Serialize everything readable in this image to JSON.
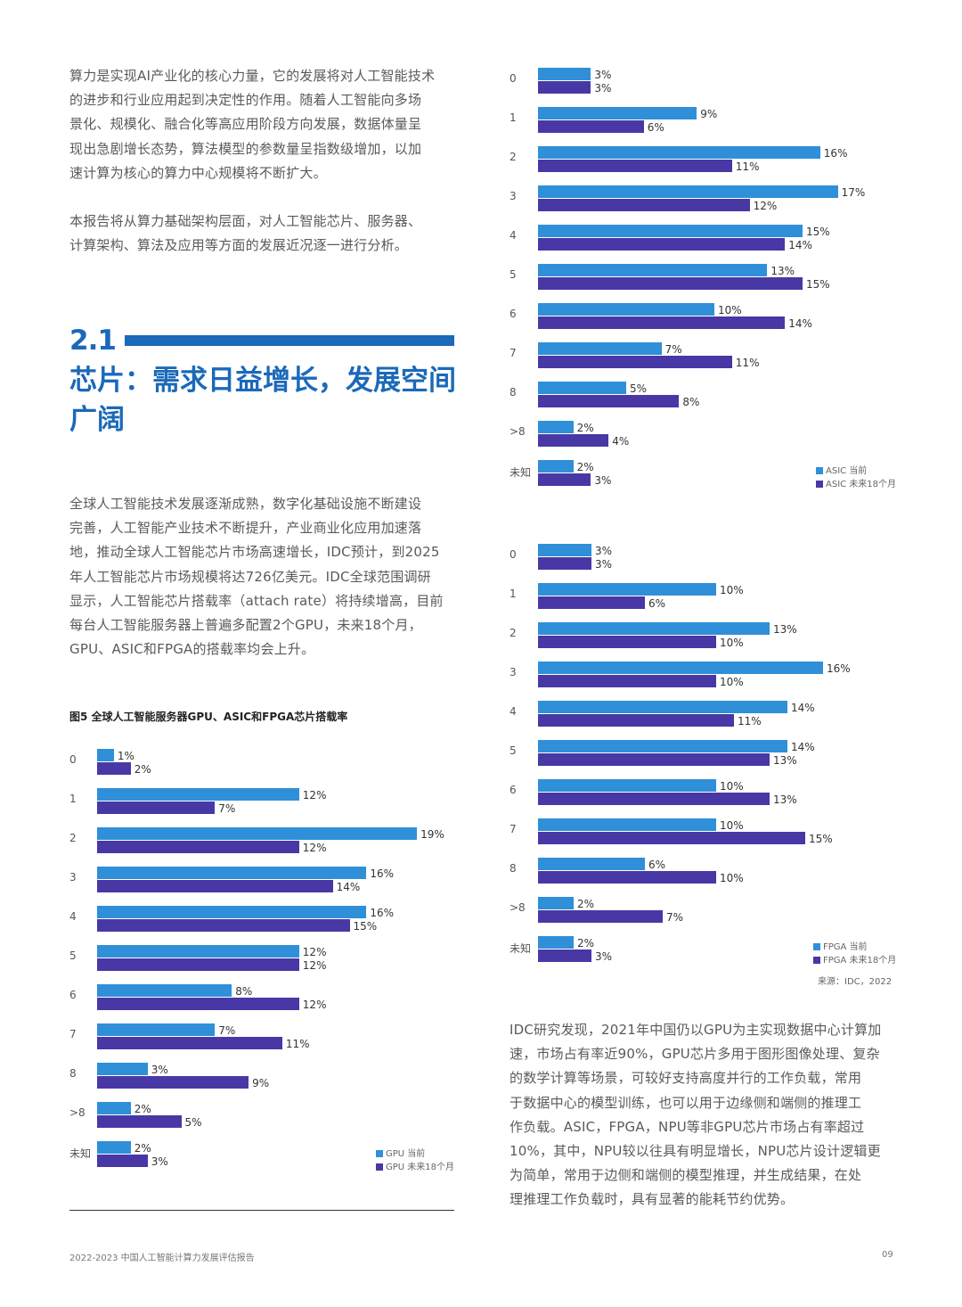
{
  "colors": {
    "accent": "#1b69b9",
    "current": "#2f8fd8",
    "future": "#4838a6"
  },
  "intro": {
    "p1": [
      "算力是实现AI产业化的核心力量，它的发展将对人工智能技术",
      "的进步和行业应用起到决定性的作用。随着人工智能向多场",
      "景化、规模化、融合化等高应用阶段方向发展，数据体量呈",
      "现出急剧增长态势，算法模型的参数量呈指数级增加，以加",
      "速计算为核心的算力中心规模将不断扩大。"
    ],
    "p2": [
      "本报告将从算力基础架构层面，对人工智能芯片、服务器、",
      "计算架构、算法及应用等方面的发展近况逐一进行分析。"
    ]
  },
  "section": {
    "number": "2.1",
    "title_lines": [
      "芯片：需求日益增长，发展空间",
      "广阔"
    ]
  },
  "body": {
    "p3": [
      "全球人工智能技术发展逐渐成熟，数字化基础设施不断建设",
      "完善，人工智能产业技术不断提升，产业商业化应用加速落",
      "地，推动全球人工智能芯片市场高速增长，IDC预计，到2025",
      "年人工智能芯片市场规模将达726亿美元。IDC全球范围调研",
      "显示，人工智能芯片搭载率（attach rate）将持续增高，目前",
      "每台人工智能服务器上普遍多配置2个GPU，未来18个月，",
      "GPU、ASIC和FPGA的搭载率均会上升。"
    ],
    "p4": [
      "IDC研究发现，2021年中国仍以GPU为主实现数据中心计算加",
      "速，市场占有率近90%，GPU芯片多用于图形图像处理、复杂",
      "的数学计算等场景，可较好支持高度并行的工作负载，常用",
      "于数据中心的模型训练，也可以用于边缘侧和端侧的推理工",
      "作负载。ASIC，FPGA，NPU等非GPU芯片市场占有率超过",
      "10%，其中，NPU较以往具有明显增长，NPU芯片设计逻辑更",
      "为简单，常用于边侧和端侧的模型推理，并生成结果，在处",
      "理推理工作负载时，具有显著的能耗节约优势。"
    ]
  },
  "figure_title": "图5 全球人工智能服务器GPU、ASIC和FPGA芯片搭载率",
  "chart_data": [
    {
      "type": "bar",
      "orientation": "horizontal",
      "unit": "%",
      "categories": [
        "0",
        "1",
        "2",
        "3",
        "4",
        "5",
        "6",
        "7",
        "8",
        ">8",
        "未知"
      ],
      "series": [
        {
          "name": "GPU 当前",
          "values": [
            1,
            12,
            19,
            16,
            16,
            12,
            8,
            7,
            3,
            2,
            2
          ]
        },
        {
          "name": "GPU 未来18个月",
          "values": [
            2,
            7,
            12,
            14,
            15,
            12,
            12,
            11,
            9,
            5,
            3
          ]
        }
      ],
      "legend": "bottom-right"
    },
    {
      "type": "bar",
      "orientation": "horizontal",
      "unit": "%",
      "categories": [
        "0",
        "1",
        "2",
        "3",
        "4",
        "5",
        "6",
        "7",
        "8",
        ">8",
        "未知"
      ],
      "series": [
        {
          "name": "ASIC 当前",
          "values": [
            3,
            9,
            16,
            17,
            15,
            13,
            10,
            7,
            5,
            2,
            2
          ]
        },
        {
          "name": "ASIC 未来18个月",
          "values": [
            3,
            6,
            11,
            12,
            14,
            15,
            14,
            11,
            8,
            4,
            3
          ]
        }
      ],
      "legend": "bottom-right"
    },
    {
      "type": "bar",
      "orientation": "horizontal",
      "unit": "%",
      "categories": [
        "0",
        "1",
        "2",
        "3",
        "4",
        "5",
        "6",
        "7",
        "8",
        ">8",
        "未知"
      ],
      "series": [
        {
          "name": "FPGA 当前",
          "values": [
            3,
            10,
            13,
            16,
            14,
            14,
            10,
            10,
            6,
            2,
            2
          ]
        },
        {
          "name": "FPGA 未来18个月",
          "values": [
            3,
            6,
            10,
            10,
            11,
            13,
            13,
            15,
            10,
            7,
            3
          ]
        }
      ],
      "legend": "bottom-right"
    }
  ],
  "source": "来源：IDC，2022",
  "footer": {
    "report": "2022-2023 中国人工智能计算力发展评估报告",
    "page": "09"
  }
}
